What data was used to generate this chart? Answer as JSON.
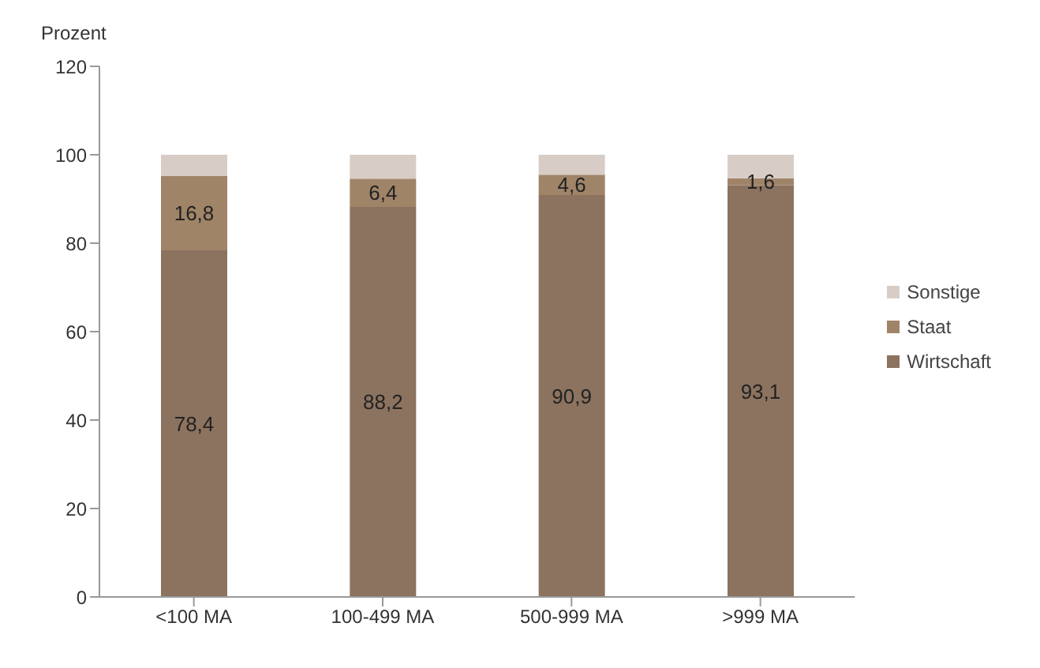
{
  "chart_data": {
    "type": "bar",
    "ylabel": "Prozent",
    "categories": [
      "<100 MA",
      "100-499 MA",
      "500-999 MA",
      ">999 MA"
    ],
    "stacked": true,
    "series": [
      {
        "name": "Wirtschaft",
        "color": "#8c735f",
        "values": [
          78.4,
          88.2,
          90.9,
          93.1
        ],
        "value_labels": [
          "78,4",
          "88,2",
          "90,9",
          "93,1"
        ]
      },
      {
        "name": "Staat",
        "color": "#a08468",
        "values": [
          16.8,
          6.4,
          4.6,
          1.6
        ],
        "value_labels": [
          "16,8",
          "6,4",
          "4,6",
          "1,6"
        ]
      },
      {
        "name": "Sonstige",
        "color": "#d8cdc6",
        "values": [
          4.8,
          5.4,
          4.5,
          5.3
        ]
      }
    ],
    "ylim": [
      0,
      120
    ],
    "yticks": [
      0,
      20,
      40,
      60,
      80,
      100,
      120
    ],
    "grid": false,
    "legend": "right"
  }
}
